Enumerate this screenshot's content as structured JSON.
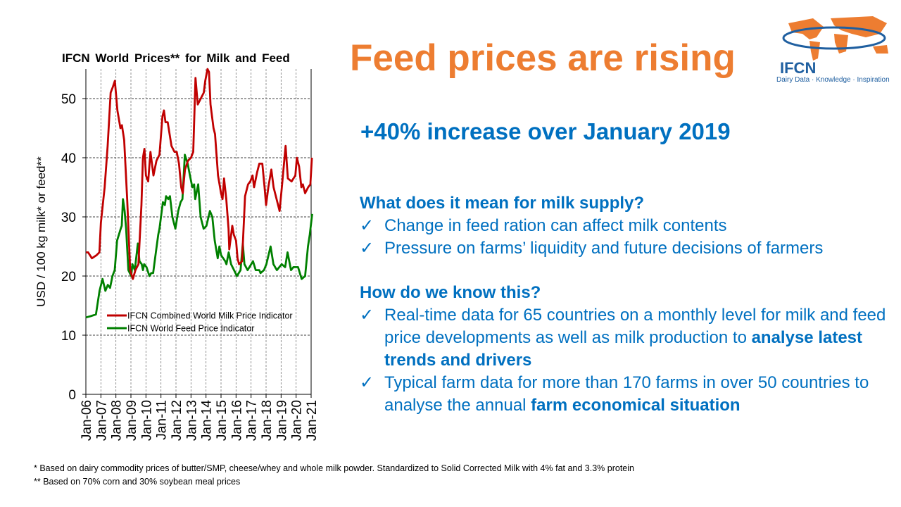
{
  "headline": "Feed prices are rising",
  "subheadline": "+40% increase over January 2019",
  "logo": {
    "name": "IFCN",
    "tagline": "Dairy Data · Knowledge · Inspiration",
    "color": "#ED7D31"
  },
  "section1": {
    "question": "What does it mean for milk supply?",
    "bullets": [
      "Change in feed ration can affect milk contents",
      "Pressure on farms’ liquidity and future decisions of farmers"
    ]
  },
  "section2": {
    "question": "How do we know this?",
    "bullet1": {
      "text": "Real-time data for 65 countries on a monthly level for milk and feed price developments as well as milk production to ",
      "bold": "analyse latest trends and drivers"
    },
    "bullet2": {
      "text": "Typical farm data for more than 170 farms in over 50 countries to analyse the annual ",
      "bold": "farm economical situation"
    }
  },
  "check_icon": "✓",
  "footnotes": [
    "* Based on dairy commodity prices of butter/SMP, cheese/whey and whole milk powder. Standardized to Solid Corrected Milk with 4% fat and 3.3% protein",
    "** Based on 70% corn and 30% soybean meal prices"
  ],
  "chart_data": {
    "type": "line",
    "title": "IFCN  World Prices** for Milk  and Feed",
    "ylabel": "USD / 100 kg milk* or feed**",
    "ylim": [
      0,
      55
    ],
    "yticks": [
      0,
      10,
      20,
      30,
      40,
      50
    ],
    "xlim": [
      2006,
      2021.1
    ],
    "xticks": [
      "Jan-06",
      "Jan-07",
      "Jan-08",
      "Jan-09",
      "Jan-10",
      "Jan-11",
      "Jan-12",
      "Jan-13",
      "Jan-14",
      "Jan-15",
      "Jan-16",
      "Jan-17",
      "Jan-18",
      "Jan-19",
      "Jan-20",
      "Jan-21"
    ],
    "grid": true,
    "legend_position": "center",
    "series": [
      {
        "name": "IFCN Combined World Milk Price Indicator",
        "color": "#C00000",
        "points": [
          [
            2006.0,
            24
          ],
          [
            2006.15,
            24
          ],
          [
            2006.4,
            23
          ],
          [
            2006.7,
            23.5
          ],
          [
            2006.9,
            24
          ],
          [
            2007.0,
            29
          ],
          [
            2007.25,
            35
          ],
          [
            2007.45,
            42
          ],
          [
            2007.65,
            51
          ],
          [
            2007.8,
            52
          ],
          [
            2007.93,
            53
          ],
          [
            2008.1,
            48
          ],
          [
            2008.3,
            45
          ],
          [
            2008.4,
            45.5
          ],
          [
            2008.55,
            43
          ],
          [
            2008.75,
            33
          ],
          [
            2008.95,
            21
          ],
          [
            2009.13,
            19.5
          ],
          [
            2009.3,
            21
          ],
          [
            2009.5,
            22
          ],
          [
            2009.7,
            32
          ],
          [
            2009.8,
            40
          ],
          [
            2009.9,
            41.5
          ],
          [
            2010.0,
            37
          ],
          [
            2010.15,
            36
          ],
          [
            2010.3,
            41
          ],
          [
            2010.5,
            37
          ],
          [
            2010.7,
            39.5
          ],
          [
            2010.9,
            40.5
          ],
          [
            2011.1,
            47
          ],
          [
            2011.2,
            48
          ],
          [
            2011.3,
            46
          ],
          [
            2011.45,
            46
          ],
          [
            2011.7,
            42
          ],
          [
            2011.9,
            41
          ],
          [
            2012.05,
            41
          ],
          [
            2012.2,
            39
          ],
          [
            2012.35,
            35
          ],
          [
            2012.45,
            34
          ],
          [
            2012.6,
            38
          ],
          [
            2012.8,
            39.5
          ],
          [
            2013.0,
            40
          ],
          [
            2013.15,
            41
          ],
          [
            2013.3,
            53.5
          ],
          [
            2013.45,
            49
          ],
          [
            2013.65,
            50
          ],
          [
            2013.85,
            51
          ],
          [
            2013.95,
            53
          ],
          [
            2014.1,
            55
          ],
          [
            2014.2,
            54.5
          ],
          [
            2014.3,
            49
          ],
          [
            2014.5,
            45
          ],
          [
            2014.6,
            44
          ],
          [
            2014.8,
            37
          ],
          [
            2015.0,
            34
          ],
          [
            2015.1,
            33
          ],
          [
            2015.2,
            36.5
          ],
          [
            2015.35,
            33
          ],
          [
            2015.5,
            28
          ],
          [
            2015.55,
            24.5
          ],
          [
            2015.75,
            28.5
          ],
          [
            2015.85,
            27
          ],
          [
            2016.0,
            26
          ],
          [
            2016.1,
            23
          ],
          [
            2016.2,
            22
          ],
          [
            2016.4,
            22.5
          ],
          [
            2016.6,
            33.5
          ],
          [
            2016.8,
            35.5
          ],
          [
            2016.95,
            36
          ],
          [
            2017.1,
            37
          ],
          [
            2017.2,
            35
          ],
          [
            2017.4,
            37.5
          ],
          [
            2017.55,
            39
          ],
          [
            2017.75,
            39
          ],
          [
            2017.9,
            35
          ],
          [
            2018.0,
            32
          ],
          [
            2018.15,
            35
          ],
          [
            2018.35,
            38
          ],
          [
            2018.5,
            35
          ],
          [
            2018.7,
            33
          ],
          [
            2018.9,
            31
          ],
          [
            2019.05,
            35
          ],
          [
            2019.3,
            42
          ],
          [
            2019.45,
            36.5
          ],
          [
            2019.7,
            36
          ],
          [
            2019.95,
            37
          ],
          [
            2020.05,
            40
          ],
          [
            2020.2,
            38.5
          ],
          [
            2020.35,
            35
          ],
          [
            2020.45,
            35.5
          ],
          [
            2020.6,
            34
          ],
          [
            2020.8,
            35
          ],
          [
            2020.95,
            35.5
          ],
          [
            2021.05,
            40
          ]
        ]
      },
      {
        "name": "IFCN World Feed Price Indicator",
        "color": "#008000",
        "points": [
          [
            2006.0,
            13
          ],
          [
            2006.3,
            13.2
          ],
          [
            2006.67,
            13.5
          ],
          [
            2006.91,
            17.5
          ],
          [
            2007.11,
            19.5
          ],
          [
            2007.3,
            17.5
          ],
          [
            2007.46,
            18.5
          ],
          [
            2007.61,
            18
          ],
          [
            2007.77,
            20
          ],
          [
            2007.92,
            21
          ],
          [
            2008.08,
            26
          ],
          [
            2008.32,
            28
          ],
          [
            2008.39,
            28.5
          ],
          [
            2008.47,
            33
          ],
          [
            2008.58,
            31
          ],
          [
            2008.68,
            28
          ],
          [
            2008.83,
            21
          ],
          [
            2009.02,
            20
          ],
          [
            2009.1,
            22
          ],
          [
            2009.26,
            21
          ],
          [
            2009.46,
            25.5
          ],
          [
            2009.57,
            22.5
          ],
          [
            2009.72,
            22
          ],
          [
            2009.8,
            21
          ],
          [
            2009.88,
            22
          ],
          [
            2010.04,
            21.5
          ],
          [
            2010.23,
            20
          ],
          [
            2010.35,
            20.5
          ],
          [
            2010.48,
            20.5
          ],
          [
            2010.66,
            24
          ],
          [
            2010.82,
            27
          ],
          [
            2010.9,
            28
          ],
          [
            2011.13,
            32.5
          ],
          [
            2011.26,
            32
          ],
          [
            2011.34,
            33.5
          ],
          [
            2011.49,
            33
          ],
          [
            2011.6,
            33.5
          ],
          [
            2011.76,
            30
          ],
          [
            2011.96,
            28
          ],
          [
            2012.15,
            31
          ],
          [
            2012.31,
            32.5
          ],
          [
            2012.43,
            33
          ],
          [
            2012.59,
            40.5
          ],
          [
            2012.78,
            39
          ],
          [
            2012.93,
            37
          ],
          [
            2013.09,
            35
          ],
          [
            2013.21,
            35.5
          ],
          [
            2013.28,
            33
          ],
          [
            2013.48,
            35.5
          ],
          [
            2013.64,
            30
          ],
          [
            2013.84,
            28
          ],
          [
            2014.03,
            28.5
          ],
          [
            2014.26,
            31
          ],
          [
            2014.42,
            30
          ],
          [
            2014.58,
            26
          ],
          [
            2014.78,
            23
          ],
          [
            2014.89,
            25
          ],
          [
            2015.01,
            23.5
          ],
          [
            2015.28,
            22.5
          ],
          [
            2015.36,
            22
          ],
          [
            2015.51,
            24
          ],
          [
            2015.67,
            22
          ],
          [
            2016.06,
            20
          ],
          [
            2016.3,
            21
          ],
          [
            2016.45,
            25.5
          ],
          [
            2016.56,
            22
          ],
          [
            2016.77,
            21
          ],
          [
            2017.13,
            22.5
          ],
          [
            2017.31,
            21
          ],
          [
            2017.55,
            21
          ],
          [
            2017.63,
            20.5
          ],
          [
            2017.86,
            21
          ],
          [
            2018.02,
            22
          ],
          [
            2018.3,
            25
          ],
          [
            2018.49,
            22
          ],
          [
            2018.72,
            21
          ],
          [
            2018.88,
            21.5
          ],
          [
            2019.04,
            22
          ],
          [
            2019.27,
            21.5
          ],
          [
            2019.43,
            24
          ],
          [
            2019.66,
            21
          ],
          [
            2019.82,
            21.5
          ],
          [
            2019.97,
            21.5
          ],
          [
            2020.13,
            21.5
          ],
          [
            2020.37,
            19.5
          ],
          [
            2020.6,
            20
          ],
          [
            2020.79,
            25
          ],
          [
            2020.91,
            27
          ],
          [
            2021.07,
            30.5
          ]
        ]
      }
    ]
  }
}
